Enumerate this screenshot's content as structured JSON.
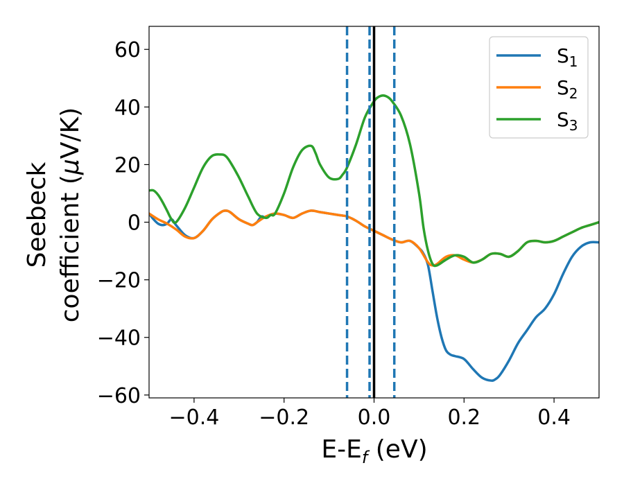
{
  "chart_data": {
    "type": "line",
    "title": "",
    "xlabel": {
      "main": "E-E",
      "sub": "f",
      "unit": " (eV)"
    },
    "ylabel": {
      "line1": "Seebeck",
      "line2_prefix": "coefficient  (",
      "mu": "μ",
      "line2_suffix": "V/K)"
    },
    "xlim": [
      -0.5,
      0.5
    ],
    "ylim": [
      -61,
      68
    ],
    "xticks": [
      -0.4,
      -0.2,
      0.0,
      0.2,
      0.4
    ],
    "xtick_labels": [
      "−0.4",
      "−0.2",
      "0.0",
      "0.2",
      "0.4"
    ],
    "yticks": [
      -60,
      -40,
      -20,
      0,
      20,
      40,
      60
    ],
    "ytick_labels": [
      "−60",
      "−40",
      "−20",
      "0",
      "20",
      "40",
      "60"
    ],
    "grid": false,
    "legend_position": "top-right",
    "fermi_line": {
      "x": 0.0,
      "color": "#000000"
    },
    "dashed_lines": {
      "x": [
        -0.06,
        -0.01,
        0.045
      ],
      "color": "#1f77b4"
    },
    "series": [
      {
        "name": "S",
        "sub": "1",
        "color": "#1f77b4",
        "x": [
          -0.5,
          -0.49,
          -0.48,
          -0.47,
          -0.46,
          -0.45,
          -0.44,
          -0.42,
          -0.4,
          -0.38,
          -0.36,
          -0.34,
          -0.33,
          -0.32,
          -0.3,
          -0.28,
          -0.27,
          -0.26,
          -0.25,
          -0.24,
          -0.23,
          -0.22,
          -0.2,
          -0.18,
          -0.16,
          -0.14,
          -0.12,
          -0.1,
          -0.08,
          -0.06,
          -0.04,
          -0.02,
          0.0,
          0.02,
          0.04,
          0.06,
          0.08,
          0.1,
          0.11,
          0.12,
          0.13,
          0.14,
          0.15,
          0.16,
          0.17,
          0.18,
          0.2,
          0.22,
          0.24,
          0.26,
          0.27,
          0.28,
          0.3,
          0.32,
          0.34,
          0.36,
          0.38,
          0.4,
          0.42,
          0.44,
          0.46,
          0.48,
          0.5
        ],
        "y": [
          3,
          1,
          -0.5,
          -1,
          -0.5,
          1,
          -1,
          -4.5,
          -5.5,
          -3,
          1,
          3.5,
          4,
          3.5,
          1,
          -0.5,
          -1,
          0,
          2,
          1.5,
          2.5,
          3,
          2.5,
          1.5,
          3,
          4,
          3.5,
          3,
          2.5,
          2,
          0.5,
          -1.5,
          -3,
          -4.5,
          -6,
          -7,
          -6.5,
          -9,
          -11,
          -15,
          -24,
          -33,
          -40,
          -44.5,
          -46,
          -46.5,
          -47.5,
          -51,
          -54,
          -55,
          -54.5,
          -53,
          -48,
          -42,
          -37.5,
          -33,
          -30,
          -25,
          -18,
          -12,
          -8.5,
          -7,
          -7
        ]
      },
      {
        "name": "S",
        "sub": "2",
        "color": "#ff7f0e",
        "x": [
          -0.5,
          -0.48,
          -0.46,
          -0.44,
          -0.42,
          -0.4,
          -0.38,
          -0.36,
          -0.34,
          -0.33,
          -0.32,
          -0.3,
          -0.28,
          -0.27,
          -0.26,
          -0.24,
          -0.22,
          -0.2,
          -0.18,
          -0.16,
          -0.14,
          -0.12,
          -0.1,
          -0.08,
          -0.06,
          -0.04,
          -0.02,
          0.0,
          0.02,
          0.04,
          0.06,
          0.08,
          0.1,
          0.12,
          0.13,
          0.14,
          0.16,
          0.18,
          0.2,
          0.22,
          0.24,
          0.26,
          0.28,
          0.3,
          0.32,
          0.34,
          0.36,
          0.38,
          0.4,
          0.42,
          0.44,
          0.46,
          0.48,
          0.5
        ],
        "y": [
          3,
          1,
          -0.5,
          -2.5,
          -5,
          -5.5,
          -3,
          1,
          3.5,
          4,
          3.5,
          1,
          -0.5,
          -1,
          0,
          2,
          3,
          2.5,
          1.5,
          3,
          4,
          3.5,
          3,
          2.5,
          2,
          0.5,
          -1.5,
          -3,
          -4.5,
          -6,
          -7,
          -6.5,
          -9,
          -14,
          -15,
          -14.5,
          -12,
          -11.5,
          -13,
          -14,
          -13,
          -11,
          -11,
          -12,
          -10,
          -7,
          -6.5,
          -7,
          -6.5,
          -5,
          -3.5,
          -2,
          -1,
          0
        ]
      },
      {
        "name": "S",
        "sub": "3",
        "color": "#2ca02c",
        "x": [
          -0.5,
          -0.49,
          -0.48,
          -0.47,
          -0.46,
          -0.45,
          -0.44,
          -0.42,
          -0.4,
          -0.38,
          -0.36,
          -0.34,
          -0.33,
          -0.32,
          -0.3,
          -0.28,
          -0.26,
          -0.24,
          -0.23,
          -0.22,
          -0.2,
          -0.18,
          -0.16,
          -0.14,
          -0.13,
          -0.12,
          -0.1,
          -0.08,
          -0.07,
          -0.06,
          -0.04,
          -0.02,
          0.0,
          0.01,
          0.02,
          0.03,
          0.04,
          0.06,
          0.08,
          0.1,
          0.11,
          0.12,
          0.13,
          0.14,
          0.16,
          0.18,
          0.2,
          0.22,
          0.24,
          0.26,
          0.28,
          0.3,
          0.32,
          0.34,
          0.36,
          0.38,
          0.4,
          0.42,
          0.44,
          0.46,
          0.48,
          0.5
        ],
        "y": [
          11,
          11,
          9.5,
          7,
          4,
          1,
          0,
          5,
          12,
          19,
          23,
          23.5,
          23,
          21,
          15.5,
          9,
          3,
          1.5,
          2.5,
          3,
          10,
          19,
          25,
          26.5,
          24,
          20,
          15.5,
          15,
          16.5,
          19,
          27,
          36.5,
          42,
          43.5,
          44,
          43.5,
          42,
          37,
          27,
          10,
          -2,
          -10,
          -14.5,
          -15,
          -13,
          -11.5,
          -12,
          -14,
          -13,
          -11,
          -11,
          -12,
          -10,
          -7,
          -6.5,
          -7,
          -6.5,
          -5,
          -3.5,
          -2,
          -1,
          0
        ]
      }
    ]
  }
}
